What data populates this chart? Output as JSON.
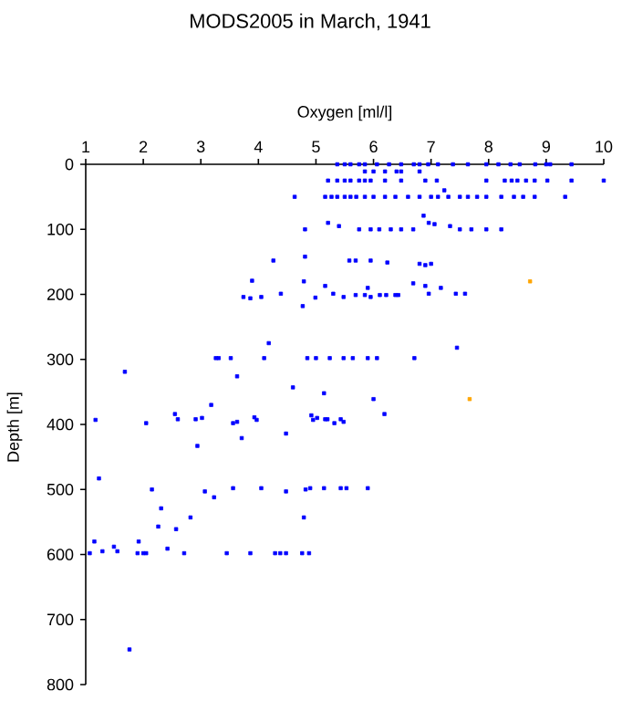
{
  "chart_data": {
    "type": "scatter",
    "title": "MODS2005 in March, 1941",
    "xlabel": "Oxygen [ml/l]",
    "ylabel": "Depth [m]",
    "xlim": [
      1,
      10
    ],
    "xticks": [
      1,
      2,
      3,
      4,
      5,
      6,
      7,
      8,
      9,
      10
    ],
    "ylim": [
      800,
      0
    ],
    "yticks": [
      0,
      100,
      200,
      300,
      400,
      500,
      600,
      700,
      800
    ],
    "marker": "square",
    "series": [
      {
        "color": "#0000ff",
        "x": [
          5.37,
          5.5,
          5.6,
          5.75,
          5.85,
          6.06,
          6.27,
          6.48,
          6.7,
          6.8,
          6.95,
          7.12,
          7.38,
          7.64,
          7.96,
          8.17,
          8.38,
          8.54,
          8.81,
          9.0,
          9.07,
          9.44,
          5.85,
          6.0,
          6.2,
          6.4,
          6.48,
          6.8,
          5.21,
          5.37,
          5.5,
          5.6,
          5.75,
          5.85,
          5.95,
          6.2,
          6.48,
          6.9,
          7.1,
          7.96,
          8.28,
          8.4,
          8.5,
          8.65,
          8.8,
          9.02,
          9.44,
          10.0,
          4.63,
          5.16,
          5.27,
          5.37,
          5.5,
          5.6,
          5.7,
          5.85,
          6.0,
          6.2,
          6.38,
          6.6,
          6.8,
          7.0,
          7.12,
          7.3,
          7.5,
          7.64,
          7.8,
          7.96,
          8.22,
          8.44,
          8.6,
          8.8,
          9.33,
          7.23,
          6.87,
          4.81,
          5.21,
          5.4,
          5.75,
          5.95,
          6.1,
          6.3,
          6.48,
          6.69,
          6.96,
          7.06,
          7.33,
          7.5,
          7.7,
          7.96,
          8.22,
          4.26,
          4.81,
          5.58,
          5.69,
          5.95,
          6.24,
          6.8,
          6.9,
          7.0,
          3.89,
          4.79,
          5.16,
          5.9,
          6.69,
          6.9,
          7.17,
          3.74,
          3.86,
          4.05,
          4.39,
          4.99,
          5.3,
          5.48,
          5.69,
          5.85,
          5.95,
          6.11,
          6.22,
          6.38,
          6.43,
          6.96,
          7.43,
          7.59,
          4.77,
          4.18,
          3.26,
          3.31,
          3.52,
          4.1,
          4.85,
          5.0,
          5.24,
          5.48,
          5.64,
          5.9,
          6.06,
          6.71,
          7.45,
          1.68,
          3.63,
          4.6,
          5.14,
          3.18,
          6.0,
          6.19,
          1.17,
          2.05,
          2.55,
          2.6,
          2.91,
          3.02,
          3.56,
          3.63,
          3.93,
          3.97,
          4.92,
          4.95,
          5.02,
          5.16,
          5.2,
          5.32,
          5.43,
          5.48,
          3.71,
          4.48,
          2.94,
          1.23,
          1.07,
          1.15,
          1.29,
          1.49,
          1.55,
          1.92,
          1.9,
          2.0,
          2.05,
          2.15,
          2.26,
          2.31,
          2.42,
          2.57,
          2.71,
          2.82,
          3.07,
          3.23,
          3.45,
          3.56,
          3.86,
          4.05,
          4.29,
          4.38,
          4.48,
          4.48,
          4.76,
          4.79,
          4.82,
          4.9,
          4.88,
          5.14,
          5.43,
          5.53,
          5.9,
          1.76
        ],
        "values": [
          0,
          0,
          0,
          0,
          0,
          0,
          0,
          0,
          0,
          0,
          0,
          0,
          0,
          0,
          0,
          0,
          0,
          0,
          0,
          0,
          0,
          0,
          11,
          11,
          11,
          11,
          11,
          11,
          25,
          25,
          25,
          25,
          25,
          25,
          25,
          25,
          25,
          25,
          25,
          25,
          25,
          25,
          25,
          25,
          25,
          25,
          25,
          25,
          50,
          50,
          50,
          50,
          50,
          50,
          50,
          50,
          50,
          50,
          50,
          50,
          50,
          50,
          50,
          50,
          50,
          50,
          50,
          50,
          50,
          50,
          50,
          50,
          50,
          40,
          79,
          100,
          90,
          95,
          100,
          100,
          100,
          100,
          100,
          100,
          90,
          92,
          95,
          100,
          100,
          100,
          100,
          148,
          142,
          148,
          148,
          148,
          151,
          153,
          155,
          153,
          179,
          180,
          187,
          190,
          183,
          187,
          190,
          204,
          206,
          204,
          199,
          205,
          199,
          204,
          201,
          201,
          204,
          201,
          201,
          201,
          201,
          199,
          199,
          199,
          218,
          275,
          298,
          298,
          298,
          298,
          298,
          298,
          298,
          298,
          298,
          298,
          298,
          298,
          282,
          319,
          326,
          343,
          352,
          370,
          361,
          384,
          393,
          398,
          384,
          392,
          392,
          390,
          398,
          396,
          389,
          393,
          386,
          393,
          390,
          392,
          392,
          398,
          392,
          396,
          421,
          414,
          433,
          483,
          598,
          580,
          595,
          588,
          595,
          580,
          598,
          598,
          598,
          500,
          557,
          529,
          591,
          561,
          598,
          543,
          503,
          512,
          598,
          498,
          598,
          498,
          598,
          598,
          598,
          503,
          598,
          543,
          500,
          498,
          598,
          498,
          498,
          498,
          498,
          746
        ]
      },
      {
        "color": "#ffa500",
        "x": [
          8.72,
          7.67
        ],
        "values": [
          180,
          361
        ]
      }
    ]
  }
}
